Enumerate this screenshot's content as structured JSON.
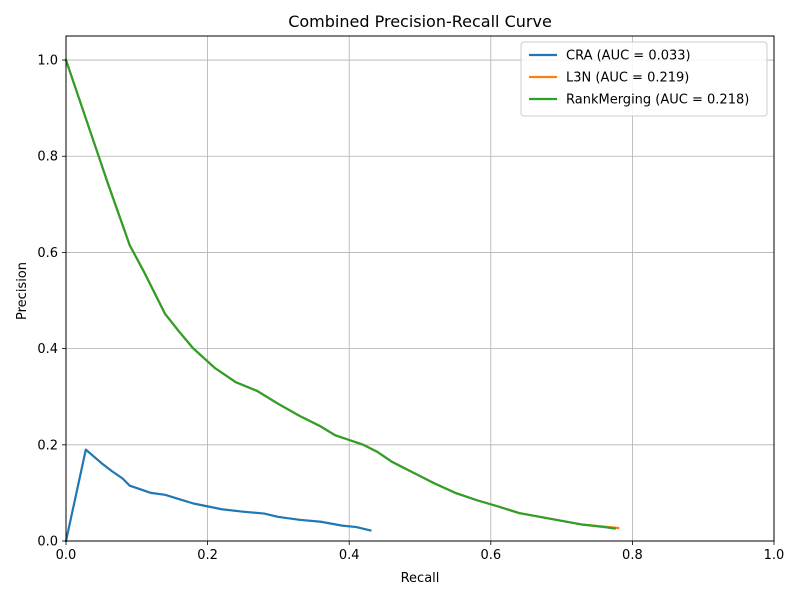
{
  "chart_data": {
    "type": "line",
    "title": "Combined Precision-Recall Curve",
    "xlabel": "Recall",
    "ylabel": "Precision",
    "xlim": [
      0.0,
      1.0
    ],
    "ylim": [
      0.0,
      1.05
    ],
    "xticks": [
      0.0,
      0.2,
      0.4,
      0.6,
      0.8,
      1.0
    ],
    "xtick_labels": [
      "0.0",
      "0.2",
      "0.4",
      "0.6",
      "0.8",
      "1.0"
    ],
    "yticks": [
      0.0,
      0.2,
      0.4,
      0.6,
      0.8,
      1.0
    ],
    "ytick_labels": [
      "0.0",
      "0.2",
      "0.4",
      "0.6",
      "0.8",
      "1.0"
    ],
    "grid": true,
    "legend_position": "top-right",
    "series": [
      {
        "name": "CRA (AUC = 0.033)",
        "color": "#1f77b4",
        "points": [
          [
            0.0,
            0.0
          ],
          [
            0.028,
            0.19
          ],
          [
            0.05,
            0.162
          ],
          [
            0.065,
            0.145
          ],
          [
            0.08,
            0.13
          ],
          [
            0.09,
            0.115
          ],
          [
            0.1,
            0.11
          ],
          [
            0.12,
            0.1
          ],
          [
            0.14,
            0.096
          ],
          [
            0.16,
            0.087
          ],
          [
            0.18,
            0.078
          ],
          [
            0.2,
            0.072
          ],
          [
            0.22,
            0.066
          ],
          [
            0.25,
            0.061
          ],
          [
            0.28,
            0.057
          ],
          [
            0.3,
            0.05
          ],
          [
            0.33,
            0.044
          ],
          [
            0.36,
            0.04
          ],
          [
            0.39,
            0.032
          ],
          [
            0.41,
            0.029
          ],
          [
            0.43,
            0.022
          ]
        ]
      },
      {
        "name": "L3N (AUC = 0.219)",
        "color": "#ff7f0e",
        "points": [
          [
            0.0,
            1.0
          ],
          [
            0.03,
            0.87
          ],
          [
            0.06,
            0.74
          ],
          [
            0.09,
            0.615
          ],
          [
            0.11,
            0.56
          ],
          [
            0.14,
            0.472
          ],
          [
            0.16,
            0.435
          ],
          [
            0.18,
            0.4
          ],
          [
            0.21,
            0.36
          ],
          [
            0.24,
            0.33
          ],
          [
            0.27,
            0.312
          ],
          [
            0.3,
            0.285
          ],
          [
            0.33,
            0.26
          ],
          [
            0.36,
            0.238
          ],
          [
            0.38,
            0.22
          ],
          [
            0.4,
            0.21
          ],
          [
            0.42,
            0.2
          ],
          [
            0.44,
            0.185
          ],
          [
            0.46,
            0.165
          ],
          [
            0.48,
            0.15
          ],
          [
            0.5,
            0.135
          ],
          [
            0.52,
            0.12
          ],
          [
            0.55,
            0.1
          ],
          [
            0.58,
            0.085
          ],
          [
            0.61,
            0.072
          ],
          [
            0.64,
            0.058
          ],
          [
            0.67,
            0.05
          ],
          [
            0.7,
            0.042
          ],
          [
            0.73,
            0.034
          ],
          [
            0.76,
            0.03
          ],
          [
            0.78,
            0.027
          ]
        ]
      },
      {
        "name": "RankMerging (AUC = 0.218)",
        "color": "#2ca02c",
        "points": [
          [
            0.0,
            1.0
          ],
          [
            0.03,
            0.87
          ],
          [
            0.06,
            0.74
          ],
          [
            0.09,
            0.615
          ],
          [
            0.11,
            0.56
          ],
          [
            0.14,
            0.472
          ],
          [
            0.16,
            0.435
          ],
          [
            0.18,
            0.4
          ],
          [
            0.21,
            0.36
          ],
          [
            0.24,
            0.33
          ],
          [
            0.27,
            0.312
          ],
          [
            0.3,
            0.285
          ],
          [
            0.33,
            0.26
          ],
          [
            0.36,
            0.238
          ],
          [
            0.38,
            0.22
          ],
          [
            0.4,
            0.21
          ],
          [
            0.42,
            0.2
          ],
          [
            0.44,
            0.185
          ],
          [
            0.46,
            0.165
          ],
          [
            0.48,
            0.15
          ],
          [
            0.5,
            0.135
          ],
          [
            0.52,
            0.12
          ],
          [
            0.55,
            0.1
          ],
          [
            0.58,
            0.085
          ],
          [
            0.61,
            0.072
          ],
          [
            0.64,
            0.058
          ],
          [
            0.67,
            0.05
          ],
          [
            0.7,
            0.042
          ],
          [
            0.73,
            0.034
          ],
          [
            0.76,
            0.029
          ],
          [
            0.775,
            0.026
          ]
        ]
      }
    ]
  }
}
